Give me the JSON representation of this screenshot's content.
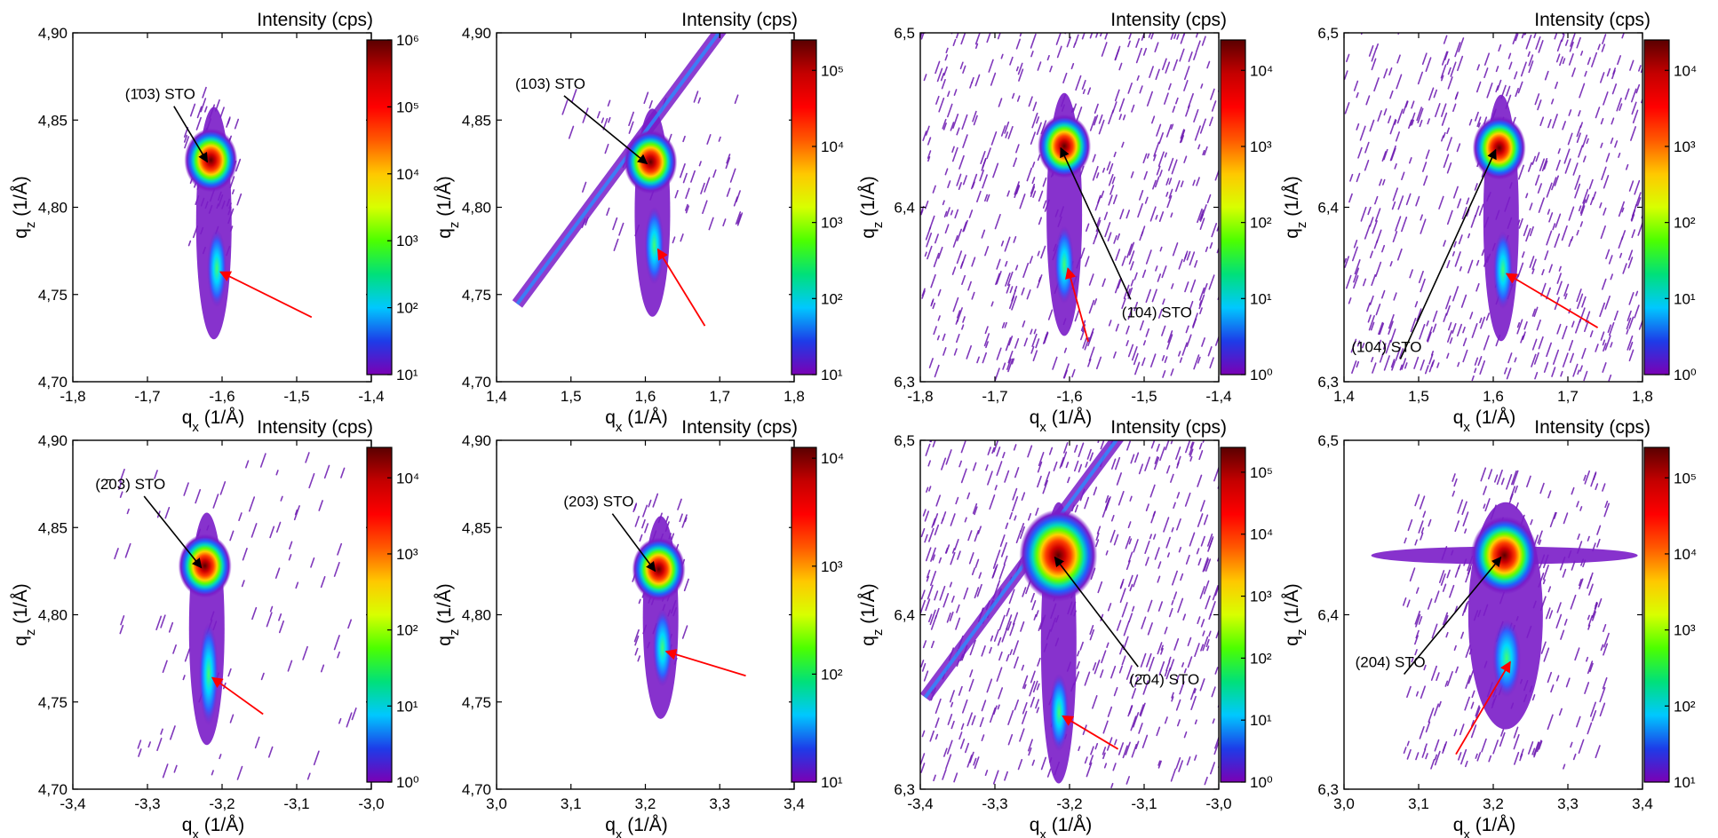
{
  "colorbar_title": "Intensity (cps)",
  "colormap": [
    "#7b00b4",
    "#1d3ce8",
    "#00c8ff",
    "#00e07a",
    "#4cff00",
    "#d8ff00",
    "#ffc800",
    "#ff5a00",
    "#ff0000",
    "#c40000",
    "#5a0000"
  ],
  "peak_arrow_color": "#000000",
  "film_arrow_color": "#ff0000",
  "chart_data": [
    {
      "type": "heatmap",
      "title": "",
      "xlabel": "q<sub>x</sub> (1/Å)",
      "ylabel": "q<sub>z</sub> (1/Å)",
      "xlim": [
        -1.8,
        -1.4
      ],
      "ylim": [
        4.7,
        4.9
      ],
      "xticks": [
        "-1,8",
        "-1,7",
        "-1,6",
        "-1,5",
        "-1,4"
      ],
      "yticks": [
        "4,70",
        "4,75",
        "4,80",
        "4,85",
        "4,90"
      ],
      "colorbar_ticks": [
        "10¹",
        "10²",
        "10³",
        "10⁴",
        "10⁵",
        "10⁶"
      ],
      "colorbar_range_log10": [
        1,
        6
      ],
      "peak_label": "(1̄03) STO",
      "peak": {
        "x": -1.615,
        "y": 4.827
      },
      "film_peak": {
        "x": -1.607,
        "y": 4.765
      },
      "label_pos": {
        "x": -1.73,
        "y": 4.862
      },
      "film_arrow_from": {
        "x": -1.48,
        "y": 4.737
      }
    },
    {
      "type": "heatmap",
      "title": "",
      "xlabel": "q<sub>x</sub> (1/Å)",
      "ylabel": "q<sub>z</sub> (1/Å)",
      "xlim": [
        1.4,
        1.8
      ],
      "ylim": [
        4.7,
        4.9
      ],
      "xticks": [
        "1,4",
        "1,5",
        "1,6",
        "1,7",
        "1,8"
      ],
      "yticks": [
        "4,70",
        "4,75",
        "4,80",
        "4,85",
        "4,90"
      ],
      "colorbar_ticks": [
        "10¹",
        "10²",
        "10³",
        "10⁴",
        "10⁵"
      ],
      "colorbar_range_log10": [
        1,
        5.4
      ],
      "peak_label": "(103) STO",
      "peak": {
        "x": 1.607,
        "y": 4.826
      },
      "film_peak": {
        "x": 1.612,
        "y": 4.778
      },
      "label_pos": {
        "x": 1.425,
        "y": 4.868
      },
      "film_arrow_from": {
        "x": 1.68,
        "y": 4.732
      }
    },
    {
      "type": "heatmap",
      "title": "",
      "xlabel": "q<sub>x</sub> (1/Å)",
      "ylabel": "q<sub>z</sub> (1/Å)",
      "xlim": [
        -1.8,
        -1.4
      ],
      "ylim": [
        6.3,
        6.5
      ],
      "xticks": [
        "-1,8",
        "-1,7",
        "-1,6",
        "-1,5",
        "-1,4"
      ],
      "yticks": [
        "6,3",
        "6,4",
        "6,5"
      ],
      "colorbar_ticks": [
        "10⁰",
        "10¹",
        "10²",
        "10³",
        "10⁴"
      ],
      "colorbar_range_log10": [
        0,
        4.4
      ],
      "peak_label": "(1̄04) STO",
      "peak": {
        "x": -1.607,
        "y": 6.435
      },
      "film_peak": {
        "x": -1.607,
        "y": 6.367
      },
      "label_pos": {
        "x": -1.53,
        "y": 6.337
      },
      "film_arrow_from": {
        "x": -1.575,
        "y": 6.323
      }
    },
    {
      "type": "heatmap",
      "title": "",
      "xlabel": "q<sub>x</sub> (1/Å)",
      "ylabel": "q<sub>z</sub> (1/Å)",
      "xlim": [
        1.4,
        1.8
      ],
      "ylim": [
        6.3,
        6.5
      ],
      "xticks": [
        "1,4",
        "1,5",
        "1,6",
        "1,7",
        "1,8"
      ],
      "yticks": [
        "6,3",
        "6,4",
        "6,5"
      ],
      "colorbar_ticks": [
        "10⁰",
        "10¹",
        "10²",
        "10³",
        "10⁴"
      ],
      "colorbar_range_log10": [
        0,
        4.4
      ],
      "peak_label": "(104) STO",
      "peak": {
        "x": 1.608,
        "y": 6.434
      },
      "film_peak": {
        "x": 1.613,
        "y": 6.364
      },
      "label_pos": {
        "x": 1.41,
        "y": 6.317
      },
      "film_arrow_from": {
        "x": 1.74,
        "y": 6.331
      }
    },
    {
      "type": "heatmap",
      "title": "",
      "xlabel": "q<sub>x</sub> (1/Å)",
      "ylabel": "q<sub>z</sub> (1/Å)",
      "xlim": [
        -3.4,
        -3.0
      ],
      "ylim": [
        4.7,
        4.9
      ],
      "xticks": [
        "-3,4",
        "-3,3",
        "-3,2",
        "-3,1",
        "-3,0"
      ],
      "yticks": [
        "4,70",
        "4,75",
        "4,80",
        "4,85",
        "4,90"
      ],
      "colorbar_ticks": [
        "10⁰",
        "10¹",
        "10²",
        "10³",
        "10⁴"
      ],
      "colorbar_range_log10": [
        0,
        4.4
      ],
      "peak_label": "(2̄03) STO",
      "peak": {
        "x": -3.223,
        "y": 4.828
      },
      "film_peak": {
        "x": -3.218,
        "y": 4.766
      },
      "label_pos": {
        "x": -3.37,
        "y": 4.872
      },
      "film_arrow_from": {
        "x": -3.145,
        "y": 4.743
      }
    },
    {
      "type": "heatmap",
      "title": "",
      "xlabel": "q<sub>x</sub> (1/Å)",
      "ylabel": "q<sub>z</sub> (1/Å)",
      "xlim": [
        3.0,
        3.4
      ],
      "ylim": [
        4.7,
        4.9
      ],
      "xticks": [
        "3,0",
        "3,1",
        "3,2",
        "3,3",
        "3,4"
      ],
      "yticks": [
        "4,70",
        "4,75",
        "4,80",
        "4,85",
        "4,90"
      ],
      "colorbar_ticks": [
        "10¹",
        "10²",
        "10³",
        "10⁴"
      ],
      "colorbar_range_log10": [
        1,
        4.1
      ],
      "peak_label": "(203) STO",
      "peak": {
        "x": 3.218,
        "y": 4.826
      },
      "film_peak": {
        "x": 3.223,
        "y": 4.781
      },
      "label_pos": {
        "x": 3.09,
        "y": 4.862
      },
      "film_arrow_from": {
        "x": 3.335,
        "y": 4.765
      }
    },
    {
      "type": "heatmap",
      "title": "",
      "xlabel": "q<sub>x</sub> (1/Å)",
      "ylabel": "q<sub>z</sub> (1/Å)",
      "xlim": [
        -3.4,
        -3.0
      ],
      "ylim": [
        6.3,
        6.5
      ],
      "xticks": [
        "-3,4",
        "-3,3",
        "-3,2",
        "-3,1",
        "-3,0"
      ],
      "yticks": [
        "6,3",
        "6,4",
        "6,5"
      ],
      "colorbar_ticks": [
        "10⁰",
        "10¹",
        "10²",
        "10³",
        "10⁴",
        "10⁵"
      ],
      "colorbar_range_log10": [
        0,
        5.4
      ],
      "peak_label": "(2̄04) STO",
      "peak": {
        "x": -3.215,
        "y": 6.434
      },
      "film_peak": {
        "x": -3.214,
        "y": 6.344
      },
      "label_pos": {
        "x": -3.12,
        "y": 6.36
      },
      "film_arrow_from": {
        "x": -3.135,
        "y": 6.323
      }
    },
    {
      "type": "heatmap",
      "title": "",
      "xlabel": "q<sub>x</sub> (1/Å)",
      "ylabel": "q<sub>z</sub> (1/Å)",
      "xlim": [
        3.0,
        3.4
      ],
      "ylim": [
        6.3,
        6.5
      ],
      "xticks": [
        "3,0",
        "3,1",
        "3,2",
        "3,3",
        "3,4"
      ],
      "yticks": [
        "6,3",
        "6,4",
        "6,5"
      ],
      "colorbar_ticks": [
        "10¹",
        "10²",
        "10³",
        "10⁴",
        "10⁵"
      ],
      "colorbar_range_log10": [
        1,
        5.4
      ],
      "peak_label": "(204) STO",
      "peak": {
        "x": 3.215,
        "y": 6.434
      },
      "film_peak": {
        "x": 3.218,
        "y": 6.375
      },
      "label_pos": {
        "x": 3.015,
        "y": 6.37
      },
      "film_arrow_from": {
        "x": 3.15,
        "y": 6.32
      }
    }
  ]
}
